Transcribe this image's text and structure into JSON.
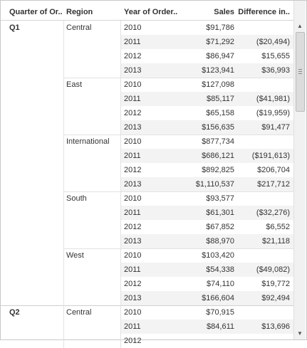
{
  "headers": {
    "quarter": "Quarter of Or..",
    "region": "Region",
    "year": "Year of Order..",
    "sales": "Sales",
    "difference": "Difference in.."
  },
  "quarters": [
    {
      "label": "Q1",
      "regions": [
        {
          "label": "Central",
          "rows": [
            {
              "year": "2010",
              "sales": "$91,786",
              "diff": ""
            },
            {
              "year": "2011",
              "sales": "$71,292",
              "diff": "($20,494)"
            },
            {
              "year": "2012",
              "sales": "$86,947",
              "diff": "$15,655"
            },
            {
              "year": "2013",
              "sales": "$123,941",
              "diff": "$36,993"
            }
          ]
        },
        {
          "label": "East",
          "rows": [
            {
              "year": "2010",
              "sales": "$127,098",
              "diff": ""
            },
            {
              "year": "2011",
              "sales": "$85,117",
              "diff": "($41,981)"
            },
            {
              "year": "2012",
              "sales": "$65,158",
              "diff": "($19,959)"
            },
            {
              "year": "2013",
              "sales": "$156,635",
              "diff": "$91,477"
            }
          ]
        },
        {
          "label": "International",
          "rows": [
            {
              "year": "2010",
              "sales": "$877,734",
              "diff": ""
            },
            {
              "year": "2011",
              "sales": "$686,121",
              "diff": "($191,613)"
            },
            {
              "year": "2012",
              "sales": "$892,825",
              "diff": "$206,704"
            },
            {
              "year": "2013",
              "sales": "$1,110,537",
              "diff": "$217,712"
            }
          ]
        },
        {
          "label": "South",
          "rows": [
            {
              "year": "2010",
              "sales": "$93,577",
              "diff": ""
            },
            {
              "year": "2011",
              "sales": "$61,301",
              "diff": "($32,276)"
            },
            {
              "year": "2012",
              "sales": "$67,852",
              "diff": "$6,552"
            },
            {
              "year": "2013",
              "sales": "$88,970",
              "diff": "$21,118"
            }
          ]
        },
        {
          "label": "West",
          "rows": [
            {
              "year": "2010",
              "sales": "$103,420",
              "diff": ""
            },
            {
              "year": "2011",
              "sales": "$54,338",
              "diff": "($49,082)"
            },
            {
              "year": "2012",
              "sales": "$74,110",
              "diff": "$19,772"
            },
            {
              "year": "2013",
              "sales": "$166,604",
              "diff": "$92,494"
            }
          ]
        }
      ]
    },
    {
      "label": "Q2",
      "regions": [
        {
          "label": "Central",
          "rows": [
            {
              "year": "2010",
              "sales": "$70,915",
              "diff": ""
            },
            {
              "year": "2011",
              "sales": "$84,611",
              "diff": "$13,696"
            },
            {
              "year": "2012",
              "sales": "",
              "diff": ""
            }
          ]
        }
      ]
    }
  ],
  "scrollbar": {
    "up_icon": "triangle-up-icon",
    "down_icon": "triangle-down-icon",
    "up_glyph": "▲",
    "down_glyph": "▼"
  }
}
